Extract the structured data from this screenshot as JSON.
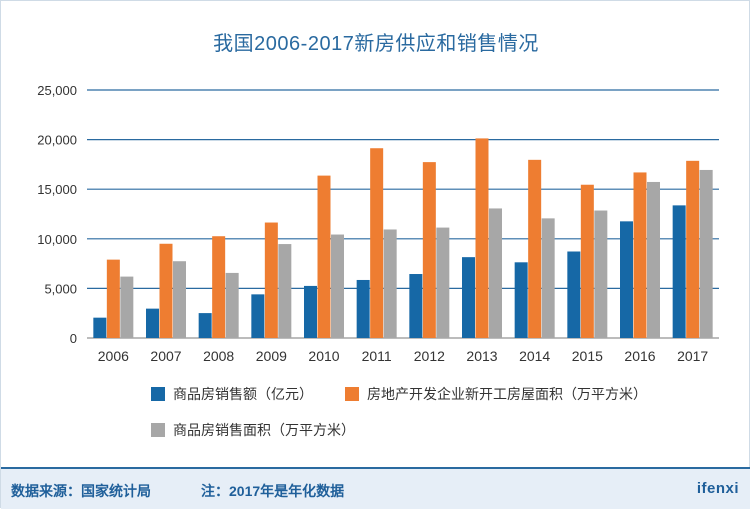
{
  "chart_data": {
    "type": "bar",
    "title": "我国2006-2017新房供应和销售情况",
    "categories": [
      "2006",
      "2007",
      "2008",
      "2009",
      "2010",
      "2011",
      "2012",
      "2013",
      "2014",
      "2015",
      "2016",
      "2017"
    ],
    "series": [
      {
        "name": "商品房销售额（亿元）",
        "color": "#1668a6",
        "values": [
          2050,
          2960,
          2510,
          4400,
          5250,
          5850,
          6450,
          8150,
          7630,
          8720,
          11760,
          13370
        ]
      },
      {
        "name": "房地产开发企业新开工房屋面积（万平方米）",
        "color": "#ee7d31",
        "values": [
          7900,
          9500,
          10260,
          11640,
          16370,
          19130,
          17730,
          20120,
          17960,
          15450,
          16690,
          17860
        ]
      },
      {
        "name": "商品房销售面积（万平方米）",
        "color": "#a7a7a7",
        "values": [
          6190,
          7740,
          6560,
          9470,
          10430,
          10940,
          11130,
          13060,
          12060,
          12850,
          15730,
          16940
        ]
      }
    ],
    "ylim": [
      0,
      25000
    ],
    "yticks": [
      0,
      5000,
      10000,
      15000,
      20000,
      25000
    ],
    "ytick_labels": [
      "0",
      "5,000",
      "10,000",
      "15,000",
      "20,000",
      "25,000"
    ],
    "grid": true,
    "legend_position": "bottom"
  },
  "footer": {
    "source": "数据来源：国家统计局",
    "note": "注：2017年是年化数据",
    "brand": "ifenxi"
  }
}
